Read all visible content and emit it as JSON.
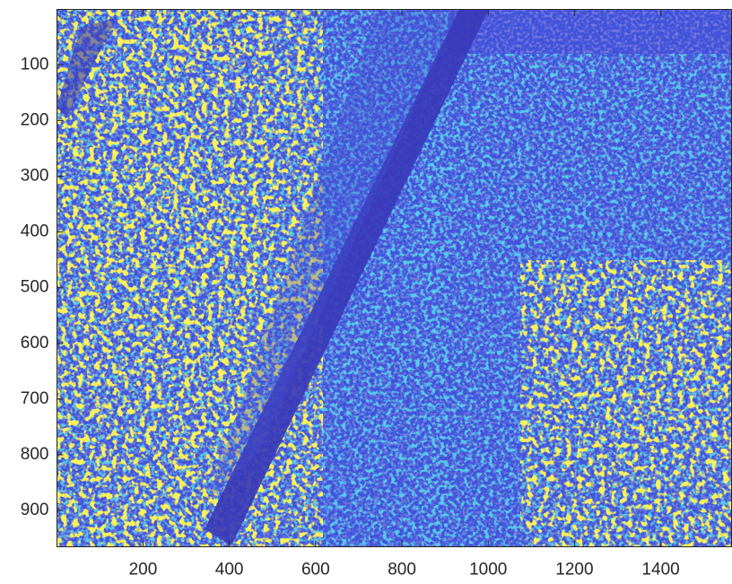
{
  "chart_data": {
    "type": "image",
    "colormap": "parula",
    "xlim": [
      0.5,
      1565
    ],
    "ylim": [
      0.5,
      965
    ],
    "y_reversed": true,
    "xticks": [
      200,
      400,
      600,
      800,
      1000,
      1200,
      1400
    ],
    "yticks": [
      100,
      200,
      300,
      400,
      500,
      600,
      700,
      800,
      900
    ]
  }
}
